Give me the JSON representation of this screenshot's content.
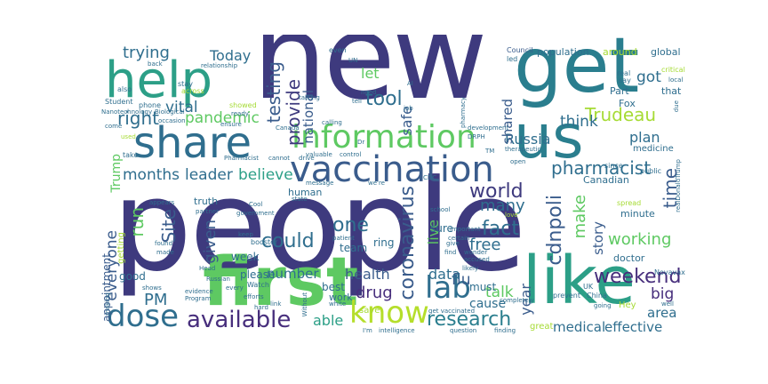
{
  "words": [
    {
      "text": "people",
      "color": "#3e3a7e"
    },
    {
      "text": "new",
      "color": "#3e3a7e"
    },
    {
      "text": "get",
      "color": "#2a7e8e"
    },
    {
      "text": "first",
      "color": "#5ec962"
    },
    {
      "text": "like",
      "color": "#2c9f87"
    },
    {
      "text": "us",
      "color": "#2a7e8e"
    },
    {
      "text": "help",
      "color": "#2c9f87"
    },
    {
      "text": "share",
      "color": "#2f6e8e"
    },
    {
      "text": "information",
      "color": "#5ec962"
    },
    {
      "text": "vaccination",
      "color": "#3a5c8c"
    },
    {
      "text": "know",
      "color": "#b5de2b"
    },
    {
      "text": "dose",
      "color": "#2f6e8e"
    },
    {
      "text": "lab",
      "color": "#2f6e8e"
    },
    {
      "text": "available",
      "color": "#472e7c"
    },
    {
      "text": "pharmacist",
      "color": "#2f6e8e"
    },
    {
      "text": "research",
      "color": "#2a7e8e"
    },
    {
      "text": "weekend",
      "color": "#472e7c"
    },
    {
      "text": "Trudeau",
      "color": "#a6db35"
    },
    {
      "text": "world",
      "color": "#3e3a7e"
    },
    {
      "text": "cdnpoli",
      "color": "#3a5c8c"
    },
    {
      "text": "coronavirus",
      "color": "#3a5c8c"
    },
    {
      "text": "fact",
      "color": "#2f6e8e"
    },
    {
      "text": "could",
      "color": "#2f6e8e"
    },
    {
      "text": "one",
      "color": "#2f6e8e"
    },
    {
      "text": "pandemic",
      "color": "#5ec962"
    },
    {
      "text": "tool",
      "color": "#2f6e8e"
    },
    {
      "text": "right",
      "color": "#2f6e8e"
    },
    {
      "text": "testing",
      "color": "#3a5c8c"
    },
    {
      "text": "provide",
      "color": "#3e3a7e"
    },
    {
      "text": "trying",
      "color": "#2f6e8e"
    },
    {
      "text": "Today",
      "color": "#2f6e8e"
    },
    {
      "text": "vital",
      "color": "#2f6e8e"
    },
    {
      "text": "months",
      "color": "#2f6e8e"
    },
    {
      "text": "leader",
      "color": "#2f6e8e"
    },
    {
      "text": "believe",
      "color": "#2c9f87"
    },
    {
      "text": "run",
      "color": "#5ec962"
    },
    {
      "text": "Site",
      "color": "#3a5c8c"
    },
    {
      "text": "given",
      "color": "#3a5c8c"
    },
    {
      "text": "everyone",
      "color": "#3a5c8c"
    },
    {
      "text": "PM",
      "color": "#2f6e8e"
    },
    {
      "text": "free",
      "color": "#2f6e8e"
    },
    {
      "text": "many",
      "color": "#2f6e8e"
    },
    {
      "text": "make",
      "color": "#5ec962"
    },
    {
      "text": "working",
      "color": "#5ec962"
    },
    {
      "text": "time",
      "color": "#3a5c8c"
    },
    {
      "text": "drug",
      "color": "#472e7c"
    },
    {
      "text": "health",
      "color": "#3a5c8c"
    },
    {
      "text": "flu",
      "color": "#3a5c8c"
    },
    {
      "text": "data",
      "color": "#2f6e8e"
    },
    {
      "text": "talk",
      "color": "#5ec962"
    },
    {
      "text": "able",
      "color": "#2c9f87"
    },
    {
      "text": "cause",
      "color": "#2f6e8e"
    },
    {
      "text": "year",
      "color": "#3a5c8c"
    },
    {
      "text": "medical",
      "color": "#2f6e8e"
    },
    {
      "text": "effective",
      "color": "#2f6e8e"
    },
    {
      "text": "area",
      "color": "#2f6e8e"
    },
    {
      "text": "big",
      "color": "#472e7c"
    },
    {
      "text": "story",
      "color": "#3a5c8c"
    },
    {
      "text": "plan",
      "color": "#2f6e8e"
    },
    {
      "text": "think",
      "color": "#2f6e8e"
    },
    {
      "text": "Russia",
      "color": "#2f6e8e"
    },
    {
      "text": "shared",
      "color": "#3a5c8c"
    },
    {
      "text": "safe",
      "color": "#3a5c8c"
    },
    {
      "text": "national",
      "color": "#3a5c8c"
    },
    {
      "text": "let",
      "color": "#5ec962"
    },
    {
      "text": "got",
      "color": "#2f6e8e"
    },
    {
      "text": "Trump",
      "color": "#5ec962"
    },
    {
      "text": "live",
      "color": "#5ec962"
    },
    {
      "text": "number",
      "color": "#2f6e8e"
    },
    {
      "text": "appointment",
      "color": "#3a5c8c"
    },
    {
      "text": "good",
      "color": "#2f6e8e"
    },
    {
      "text": "week",
      "color": "#2f6e8e"
    },
    {
      "text": "please",
      "color": "#2f6e8e"
    },
    {
      "text": "best",
      "color": "#2f6e8e"
    },
    {
      "text": "must",
      "color": "#2f6e8e"
    },
    {
      "text": "sure",
      "color": "#2f6e8e"
    },
    {
      "text": "ring",
      "color": "#2f6e8e"
    },
    {
      "text": "team",
      "color": "#2f6e8e"
    },
    {
      "text": "human",
      "color": "#2f6e8e"
    },
    {
      "text": "truth",
      "color": "#2f6e8e"
    },
    {
      "text": "doctor",
      "color": "#2f6e8e"
    },
    {
      "text": "minute",
      "color": "#2f6e8e"
    },
    {
      "text": "Canadian",
      "color": "#2f6e8e"
    },
    {
      "text": "population",
      "color": "#2f6e8e"
    },
    {
      "text": "around",
      "color": "#a6db35"
    },
    {
      "text": "global",
      "color": "#2f6e8e"
    },
    {
      "text": "Part",
      "color": "#2f6e8e"
    },
    {
      "text": "that",
      "color": "#2f6e8e"
    },
    {
      "text": "Fox",
      "color": "#2f6e8e"
    },
    {
      "text": "medicine",
      "color": "#2f6e8e"
    },
    {
      "text": "work",
      "color": "#2f6e8e"
    },
    {
      "text": "save",
      "color": "#a6db35"
    },
    {
      "text": "great",
      "color": "#a6db35"
    },
    {
      "text": "Hey",
      "color": "#a6db35"
    },
    {
      "text": "getting",
      "color": "#a6db35"
    },
    {
      "text": "Council",
      "color": "#3a5c8c"
    },
    {
      "text": "real",
      "color": "#2f6e8e"
    },
    {
      "text": "critical",
      "color": "#a6db35"
    },
    {
      "text": "say",
      "color": "#2f6e8e"
    },
    {
      "text": "led",
      "color": "#2f6e8e"
    },
    {
      "text": "even",
      "color": "#2f6e8e"
    },
    {
      "text": "relationship",
      "color": "#2f6e8e"
    },
    {
      "text": "back",
      "color": "#2f6e8e"
    },
    {
      "text": "also",
      "color": "#2f6e8e"
    },
    {
      "text": "stay",
      "color": "#2f6e8e"
    },
    {
      "text": "across",
      "color": "#a6db35"
    },
    {
      "text": "Student",
      "color": "#2f6e8e"
    },
    {
      "text": "phone",
      "color": "#2f6e8e"
    },
    {
      "text": "Nanotechnology",
      "color": "#2f6e8e"
    },
    {
      "text": "Biological",
      "color": "#2f6e8e"
    },
    {
      "text": "occasion",
      "color": "#2f6e8e"
    },
    {
      "text": "come",
      "color": "#2f6e8e"
    },
    {
      "text": "used",
      "color": "#a6db35"
    },
    {
      "text": "take",
      "color": "#2f6e8e"
    },
    {
      "text": "Canada",
      "color": "#2f6e8e"
    },
    {
      "text": "cannot",
      "color": "#2f6e8e"
    },
    {
      "text": "valuable",
      "color": "#2f6e8e"
    },
    {
      "text": "control",
      "color": "#2f6e8e"
    },
    {
      "text": "development",
      "color": "#2f6e8e"
    },
    {
      "text": "therapeutic",
      "color": "#2f6e8e"
    },
    {
      "text": "talking",
      "color": "#2f6e8e"
    },
    {
      "text": "drive",
      "color": "#2f6e8e"
    },
    {
      "text": "message",
      "color": "#2f6e8e"
    },
    {
      "text": "keep",
      "color": "#2f6e8e"
    },
    {
      "text": "booster",
      "color": "#2f6e8e"
    },
    {
      "text": "Watch",
      "color": "#2f6e8e"
    },
    {
      "text": "government",
      "color": "#2f6e8e"
    },
    {
      "text": "Cool",
      "color": "#2f6e8e"
    },
    {
      "text": "partner",
      "color": "#2f6e8e"
    },
    {
      "text": "every",
      "color": "#2f6e8e"
    },
    {
      "text": "efforts",
      "color": "#2f6e8e"
    },
    {
      "text": "evidence",
      "color": "#2f6e8e"
    },
    {
      "text": "Program",
      "color": "#2f6e8e"
    },
    {
      "text": "hard",
      "color": "#2f6e8e"
    },
    {
      "text": "link",
      "color": "#2f6e8e"
    },
    {
      "text": "white",
      "color": "#2f6e8e"
    },
    {
      "text": "Without",
      "color": "#2f6e8e"
    },
    {
      "text": "I'm",
      "color": "#2f6e8e"
    },
    {
      "text": "intelligence",
      "color": "#2f6e8e"
    },
    {
      "text": "get vaccinated",
      "color": "#2f6e8e"
    },
    {
      "text": "question",
      "color": "#2f6e8e"
    },
    {
      "text": "finding",
      "color": "#2f6e8e"
    },
    {
      "text": "important",
      "color": "#2f6e8e"
    },
    {
      "text": "certain",
      "color": "#2f6e8e"
    },
    {
      "text": "school",
      "color": "#2f6e8e"
    },
    {
      "text": "open",
      "color": "#2f6e8e"
    },
    {
      "text": "CDC",
      "color": "#2f6e8e"
    },
    {
      "text": "we're",
      "color": "#2f6e8e"
    },
    {
      "text": "patient",
      "color": "#2f6e8e"
    },
    {
      "text": "state",
      "color": "#2f6e8e"
    },
    {
      "text": "accused",
      "color": "#2f6e8e"
    },
    {
      "text": "likely",
      "color": "#2f6e8e"
    },
    {
      "text": "wonder",
      "color": "#2f6e8e"
    },
    {
      "text": "find",
      "color": "#2f6e8e"
    },
    {
      "text": "give",
      "color": "#2f6e8e"
    },
    {
      "text": "love",
      "color": "#a6db35"
    },
    {
      "text": "China",
      "color": "#2f6e8e"
    },
    {
      "text": "UK",
      "color": "#2f6e8e"
    },
    {
      "text": "prevent",
      "color": "#2f6e8e"
    },
    {
      "text": "since",
      "color": "#2f6e8e"
    },
    {
      "text": "public",
      "color": "#2f6e8e"
    },
    {
      "text": "Novavax",
      "color": "#2f6e8e"
    },
    {
      "text": "realDonaldTrump",
      "color": "#2f6e8e"
    },
    {
      "text": "spread",
      "color": "#a6db35"
    },
    {
      "text": "going",
      "color": "#2f6e8e"
    },
    {
      "text": "well",
      "color": "#2f6e8e"
    },
    {
      "text": "Head",
      "color": "#2f6e8e"
    },
    {
      "text": "made",
      "color": "#2f6e8e"
    },
    {
      "text": "found",
      "color": "#2f6e8e"
    },
    {
      "text": "appears",
      "color": "#2f6e8e"
    },
    {
      "text": "making",
      "color": "#2f6e8e"
    },
    {
      "text": "shows",
      "color": "#2f6e8e"
    },
    {
      "text": "ensure",
      "color": "#2f6e8e"
    },
    {
      "text": "Russian",
      "color": "#2f6e8e"
    },
    {
      "text": "completely",
      "color": "#2f6e8e"
    },
    {
      "text": "tell",
      "color": "#2f6e8e"
    },
    {
      "text": "UN",
      "color": "#2f6e8e"
    },
    {
      "text": "AI",
      "color": "#2f6e8e"
    },
    {
      "text": "job",
      "color": "#2f6e8e"
    },
    {
      "text": "pharmacy",
      "color": "#2f6e8e"
    },
    {
      "text": "DRPH",
      "color": "#2f6e8e"
    },
    {
      "text": "showed",
      "color": "#a6db35"
    },
    {
      "text": "ready",
      "color": "#2f6e8e"
    },
    {
      "text": "Pharmacist",
      "color": "#2f6e8e"
    },
    {
      "text": "Dr",
      "color": "#2f6e8e"
    },
    {
      "text": "calling",
      "color": "#2f6e8e"
    },
    {
      "text": "need",
      "color": "#2f6e8e"
    },
    {
      "text": "TM",
      "color": "#2f6e8e"
    },
    {
      "text": "due",
      "color": "#2f6e8e"
    },
    {
      "text": "local",
      "color": "#2f6e8e"
    }
  ]
}
